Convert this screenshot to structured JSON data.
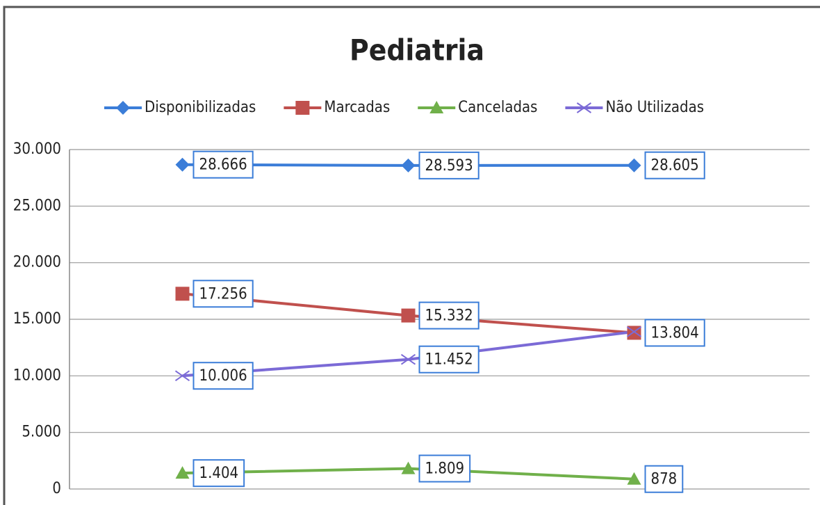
{
  "chart_data": {
    "type": "line",
    "title": "Pediatria",
    "categories": [
      null,
      null,
      null
    ],
    "series": [
      {
        "name": "Disponibilizadas",
        "color": "#3b7dd8",
        "marker": "diamond",
        "values": [
          28666,
          28593,
          28605
        ],
        "value_labels": [
          "28.666",
          "28.593",
          "28.605"
        ]
      },
      {
        "name": "Marcadas",
        "color": "#c0504d",
        "marker": "square",
        "values": [
          17256,
          15332,
          13804
        ],
        "value_labels": [
          "17.256",
          "15.332",
          "13.804"
        ]
      },
      {
        "name": "Canceladas",
        "color": "#70b04a",
        "marker": "triangle",
        "values": [
          1404,
          1809,
          878
        ],
        "value_labels": [
          "1.404",
          "1.809",
          "878"
        ]
      },
      {
        "name": "Não Utilizadas",
        "color": "#7b6ad6",
        "marker": "x",
        "values": [
          10006,
          11452,
          13900
        ],
        "value_labels": [
          "10.006",
          "11.452",
          null
        ]
      }
    ],
    "ylim": [
      0,
      30000
    ],
    "yticks": [
      0,
      {
        "value": 5000,
        "label": "5.000"
      },
      {
        "value": 10000,
        "label": "10.000"
      },
      {
        "value": 15000,
        "label": "15.000"
      },
      {
        "value": 20000,
        "label": "20.000"
      },
      {
        "value": 25000,
        "label": "25.000"
      },
      {
        "value": 30000,
        "label": "30.000"
      }
    ],
    "grid": true,
    "legend": "top"
  }
}
